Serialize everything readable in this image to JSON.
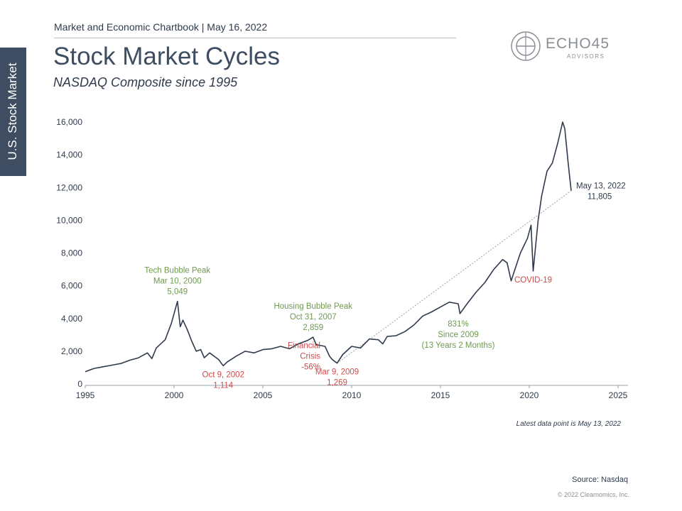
{
  "header": {
    "chartbook": "Market and Economic Chartbook | May 16, 2022"
  },
  "side_tab": {
    "label": "U.S. Stock Market"
  },
  "title": "Stock Market Cycles",
  "subtitle": "NASDAQ Composite since 1995",
  "logo": {
    "word": "ECHO45",
    "sub": "ADVISORS"
  },
  "colors": {
    "line": "#2f3b4c",
    "green": "#6e9a4f",
    "red": "#d24a4a",
    "tab": "#3e4d62"
  },
  "chart_data": {
    "type": "line",
    "title": "Stock Market Cycles",
    "subtitle": "NASDAQ Composite since 1995",
    "xlabel": "",
    "ylabel": "",
    "xlim": [
      1995,
      2025
    ],
    "ylim": [
      0,
      16000
    ],
    "x_ticks": [
      1995,
      2000,
      2005,
      2010,
      2015,
      2020,
      2025
    ],
    "y_ticks": [
      {
        "value": 0,
        "label": "0"
      },
      {
        "value": 2000,
        "label": "2,000"
      },
      {
        "value": 4000,
        "label": "4,000"
      },
      {
        "value": 6000,
        "label": "6,000"
      },
      {
        "value": 8000,
        "label": "8,000"
      },
      {
        "value": 10000,
        "label": "10,000"
      },
      {
        "value": 12000,
        "label": "12,000"
      },
      {
        "value": 14000,
        "label": "14,000"
      },
      {
        "value": 16000,
        "label": "16,000"
      }
    ],
    "grid": false,
    "series": [
      {
        "name": "NASDAQ Composite",
        "x": [
          1995.0,
          1995.5,
          1996.0,
          1996.5,
          1997.0,
          1997.5,
          1998.0,
          1998.5,
          1998.75,
          1999.0,
          1999.5,
          1999.85,
          2000.19,
          2000.35,
          2000.5,
          2000.75,
          2001.0,
          2001.25,
          2001.5,
          2001.7,
          2002.0,
          2002.5,
          2002.77,
          2003.0,
          2003.5,
          2004.0,
          2004.5,
          2005.0,
          2005.5,
          2006.0,
          2006.5,
          2007.0,
          2007.5,
          2007.83,
          2008.0,
          2008.5,
          2008.75,
          2008.9,
          2009.18,
          2009.5,
          2010.0,
          2010.5,
          2011.0,
          2011.5,
          2011.75,
          2012.0,
          2012.5,
          2013.0,
          2013.5,
          2014.0,
          2014.5,
          2015.0,
          2015.5,
          2016.0,
          2016.1,
          2016.5,
          2017.0,
          2017.5,
          2018.0,
          2018.5,
          2018.75,
          2018.98,
          2019.5,
          2019.9,
          2020.1,
          2020.22,
          2020.5,
          2020.7,
          2021.0,
          2021.3,
          2021.6,
          2021.88,
          2022.0,
          2022.2,
          2022.36
        ],
        "values": [
          750,
          950,
          1050,
          1150,
          1250,
          1450,
          1600,
          1900,
          1550,
          2200,
          2700,
          3700,
          5049,
          3500,
          3900,
          3300,
          2600,
          2000,
          2100,
          1600,
          1900,
          1500,
          1114,
          1350,
          1700,
          2000,
          1900,
          2100,
          2150,
          2300,
          2150,
          2450,
          2650,
          2859,
          2400,
          2300,
          1700,
          1500,
          1269,
          1800,
          2300,
          2200,
          2750,
          2700,
          2450,
          2900,
          2950,
          3200,
          3600,
          4150,
          4400,
          4700,
          5000,
          4900,
          4300,
          4900,
          5600,
          6200,
          7000,
          7600,
          7400,
          6300,
          8000,
          8900,
          9700,
          6900,
          10000,
          11500,
          13000,
          13500,
          14700,
          16000,
          15600,
          13400,
          11805
        ]
      }
    ],
    "trend_line": {
      "from": {
        "x": 2009.18,
        "y": 1269
      },
      "to": {
        "x": 2022.36,
        "y": 11805
      },
      "style": "dotted"
    },
    "annotations": [
      {
        "lines": [
          "Tech Bubble Peak",
          "Mar 10, 2000",
          "5,049"
        ],
        "x": 2000.19,
        "y": 5049,
        "color": "green",
        "position": "above"
      },
      {
        "lines": [
          "Oct 9, 2002",
          "1,114"
        ],
        "x": 2002.77,
        "y": 1114,
        "color": "red",
        "position": "below"
      },
      {
        "lines": [
          "Housing Bubble Peak",
          "Oct 31, 2007",
          "2,859"
        ],
        "x": 2007.83,
        "y": 2859,
        "color": "green",
        "position": "above"
      },
      {
        "lines": [
          "Financial",
          "Crisis",
          "-56%"
        ],
        "x": 2008.4,
        "y": 1500,
        "color": "red",
        "position": "left"
      },
      {
        "lines": [
          "Mar 9, 2009",
          "1,269"
        ],
        "x": 2009.18,
        "y": 1269,
        "color": "red",
        "position": "below"
      },
      {
        "lines": [
          "831%",
          "Since 2009",
          "(13 Years 2 Months)"
        ],
        "x": 2016.0,
        "y": 3000,
        "color": "green",
        "position": "center"
      },
      {
        "lines": [
          "COVID-19"
        ],
        "x": 2020.22,
        "y": 6900,
        "color": "red",
        "position": "below"
      },
      {
        "lines": [
          "May 13, 2022",
          "11,805"
        ],
        "x": 2022.36,
        "y": 11805,
        "color": "dark",
        "position": "right"
      }
    ]
  },
  "footer": {
    "latest": "Latest data point is May 13, 2022",
    "source": "Source: Nasdaq",
    "copyright": "© 2022 Clearnomics, Inc."
  }
}
